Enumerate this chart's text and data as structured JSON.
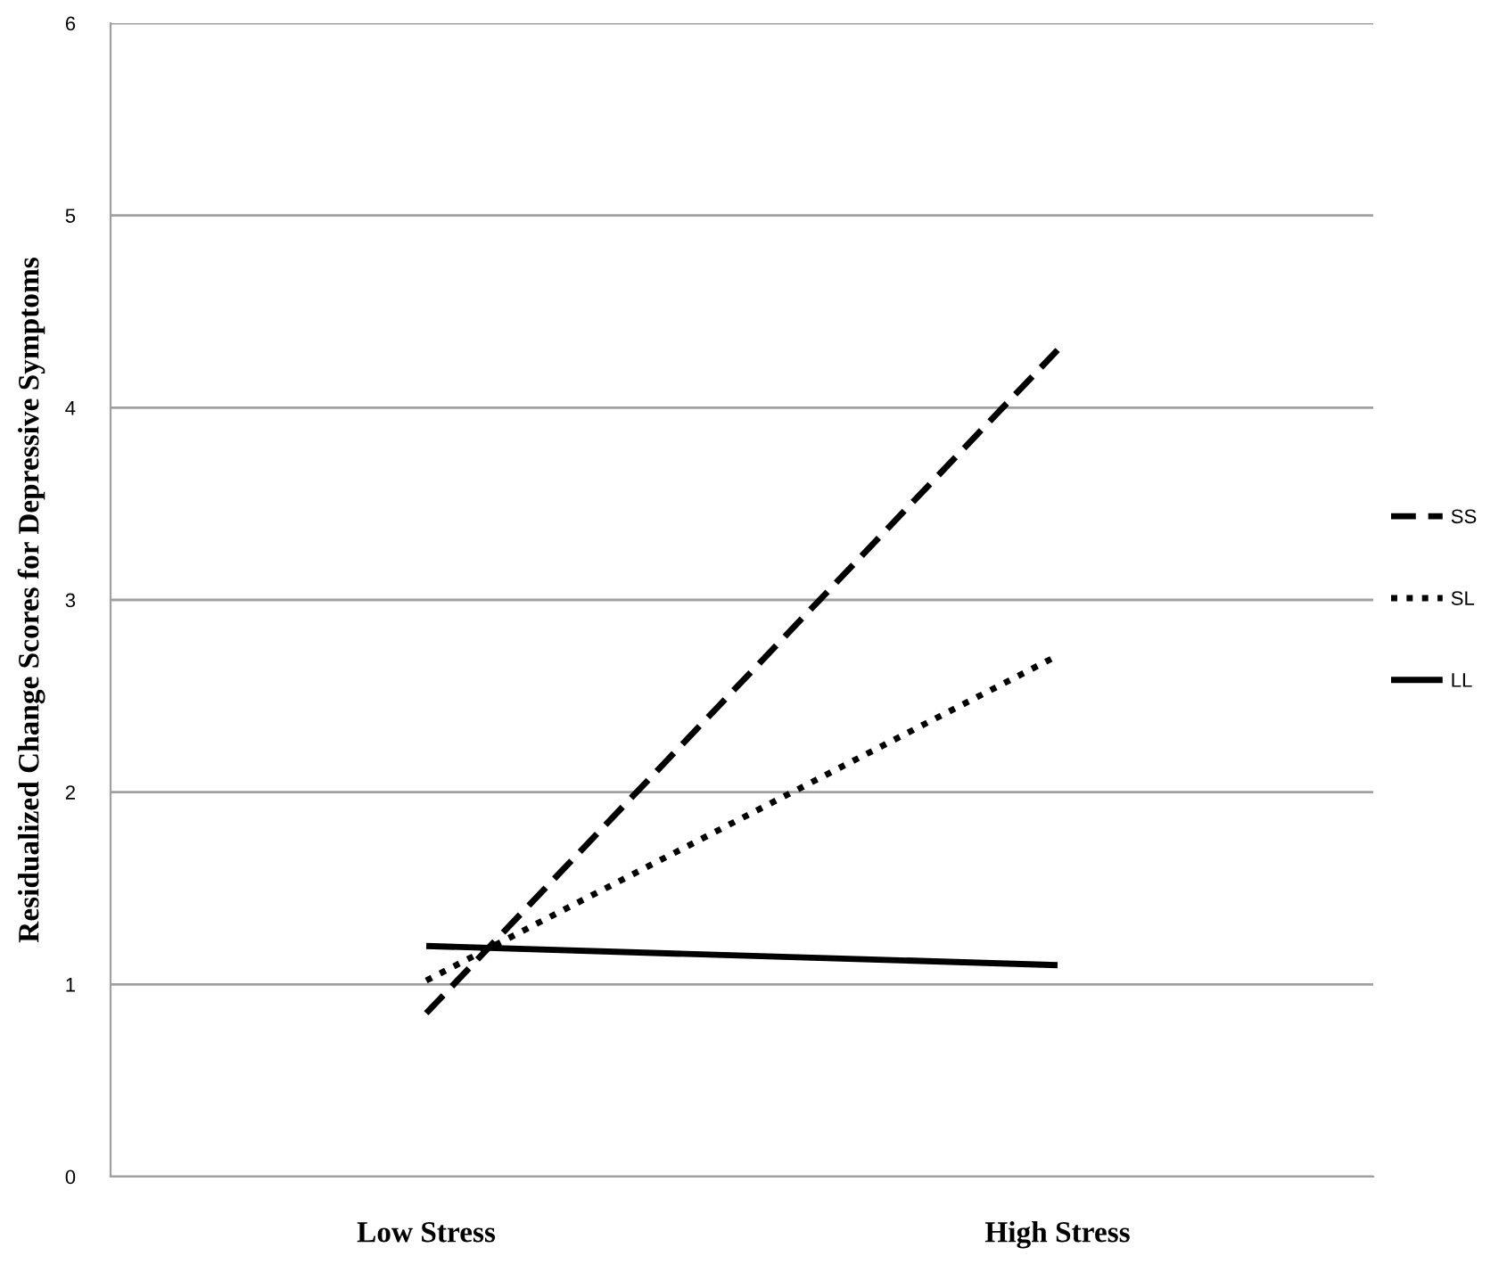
{
  "chart_data": {
    "type": "line",
    "ylabel": "Residualized Change Scores for Depressive Symptoms",
    "categories": [
      "Low Stress",
      "High Stress"
    ],
    "series": [
      {
        "name": "SS",
        "color": "#000000",
        "line_style": "dashed",
        "values": [
          0.85,
          4.3
        ]
      },
      {
        "name": "SL",
        "color": "#000000",
        "line_style": "dotted",
        "values": [
          1.02,
          2.71
        ]
      },
      {
        "name": "LL",
        "color": "#000000",
        "line_style": "solid",
        "values": [
          1.2,
          1.1
        ]
      }
    ],
    "ylim": [
      0,
      6
    ],
    "yticks": [
      0,
      1,
      2,
      3,
      4,
      5,
      6
    ],
    "grid": "y",
    "legend": "right",
    "marker": "none"
  }
}
